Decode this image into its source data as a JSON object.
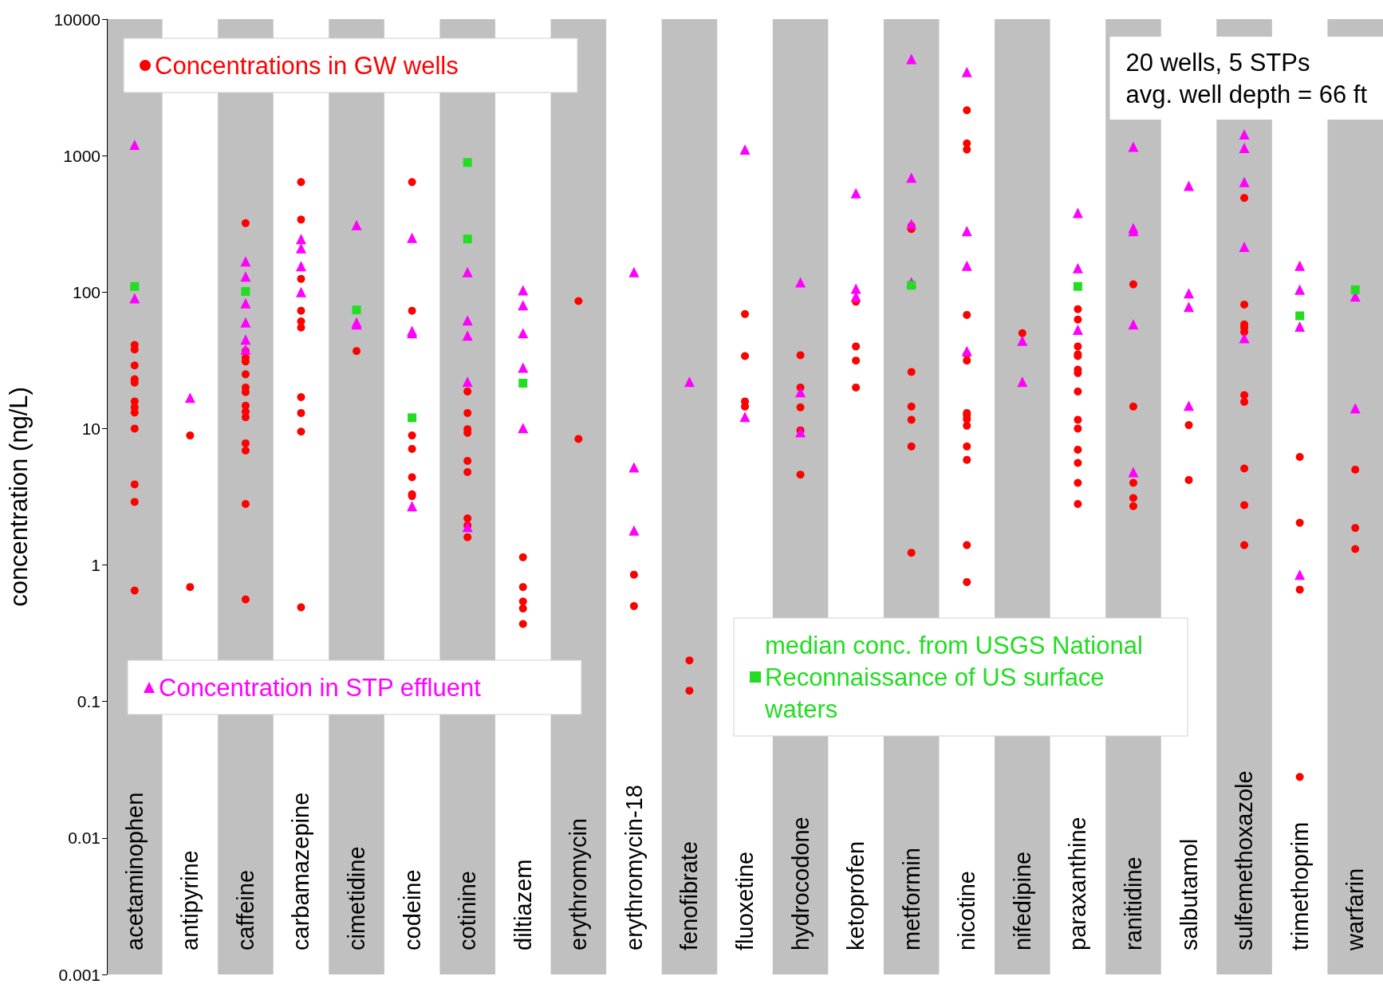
{
  "chart_data": {
    "type": "scatter",
    "ylabel": "concentration (ng/L)",
    "categories": [
      "acetaminophen",
      "antipyrine",
      "caffeine",
      "carbamazepine",
      "cimetidine",
      "codeine",
      "cotinine",
      "diltiazem",
      "erythromycin",
      "erythromycin-18",
      "fenofibrate",
      "fluoxetine",
      "hydrocodone",
      "ketoprofen",
      "metformin",
      "nicotine",
      "nifedipine",
      "paraxanthine",
      "ranitidine",
      "salbutamol",
      "sulfemethoxazole",
      "trimethoprim",
      "warfarin"
    ],
    "log": true,
    "ylim": [
      0.001,
      10000
    ],
    "yticks": [
      0.001,
      0.01,
      0.1,
      1,
      10,
      100,
      1000,
      10000
    ],
    "grid": false,
    "legend": "top left",
    "annotations": [
      "20 wells, 5 STPs\navg. well depth = 66 ft"
    ],
    "bands": [
      {
        "axis": "x",
        "from": "acetaminophen",
        "to": "acetaminophen",
        "color": "#c0c0c0"
      },
      {
        "axis": "x",
        "from": "caffeine",
        "to": "caffeine",
        "color": "#c0c0c0"
      },
      {
        "axis": "x",
        "from": "cimetidine",
        "to": "cimetidine",
        "color": "#c0c0c0"
      },
      {
        "axis": "x",
        "from": "cotinine",
        "to": "cotinine",
        "color": "#c0c0c0"
      },
      {
        "axis": "x",
        "from": "erythromycin",
        "to": "erythromycin",
        "color": "#c0c0c0"
      },
      {
        "axis": "x",
        "from": "fenofibrate",
        "to": "fenofibrate",
        "color": "#c0c0c0"
      },
      {
        "axis": "x",
        "from": "hydrocodone",
        "to": "hydrocodone",
        "color": "#c0c0c0"
      },
      {
        "axis": "x",
        "from": "metformin",
        "to": "metformin",
        "color": "#c0c0c0"
      },
      {
        "axis": "x",
        "from": "nifedipine",
        "to": "nifedipine",
        "color": "#c0c0c0"
      },
      {
        "axis": "x",
        "from": "ranitidine",
        "to": "ranitidine",
        "color": "#c0c0c0"
      },
      {
        "axis": "x",
        "from": "sulfemethoxazole",
        "to": "sulfemethoxazole",
        "color": "#c0c0c0"
      },
      {
        "axis": "x",
        "from": "warfarin",
        "to": "warfarin",
        "color": "#c0c0c0"
      }
    ],
    "series": [
      {
        "name": "Concentrations in GW wells",
        "color": "#ff0000",
        "marker": "circle",
        "x": [
          "acetaminophen",
          "acetaminophen",
          "acetaminophen",
          "acetaminophen",
          "acetaminophen",
          "acetaminophen",
          "acetaminophen",
          "acetaminophen",
          "acetaminophen",
          "acetaminophen",
          "acetaminophen",
          "acetaminophen",
          "antipyrine",
          "antipyrine",
          "caffeine",
          "caffeine",
          "caffeine",
          "caffeine",
          "caffeine",
          "caffeine",
          "caffeine",
          "caffeine",
          "caffeine",
          "caffeine",
          "caffeine",
          "caffeine",
          "caffeine",
          "caffeine",
          "carbamazepine",
          "carbamazepine",
          "carbamazepine",
          "carbamazepine",
          "carbamazepine",
          "carbamazepine",
          "carbamazepine",
          "carbamazepine",
          "carbamazepine",
          "carbamazepine",
          "cimetidine",
          "codeine",
          "codeine",
          "codeine",
          "codeine",
          "codeine",
          "codeine",
          "codeine",
          "cotinine",
          "cotinine",
          "cotinine",
          "cotinine",
          "cotinine",
          "cotinine",
          "cotinine",
          "cotinine",
          "cotinine",
          "diltiazem",
          "diltiazem",
          "diltiazem",
          "diltiazem",
          "diltiazem",
          "erythromycin",
          "erythromycin",
          "erythromycin-18",
          "erythromycin-18",
          "fenofibrate",
          "fenofibrate",
          "fluoxetine",
          "fluoxetine",
          "fluoxetine",
          "fluoxetine",
          "hydrocodone",
          "hydrocodone",
          "hydrocodone",
          "hydrocodone",
          "hydrocodone",
          "ketoprofen",
          "ketoprofen",
          "ketoprofen",
          "ketoprofen",
          "metformin",
          "metformin",
          "metformin",
          "metformin",
          "metformin",
          "metformin",
          "metformin",
          "nicotine",
          "nicotine",
          "nicotine",
          "nicotine",
          "nicotine",
          "nicotine",
          "nicotine",
          "nicotine",
          "nicotine",
          "nicotine",
          "nicotine",
          "nicotine",
          "nicotine",
          "nicotine",
          "nifedipine",
          "paraxanthine",
          "paraxanthine",
          "paraxanthine",
          "paraxanthine",
          "paraxanthine",
          "paraxanthine",
          "paraxanthine",
          "paraxanthine",
          "paraxanthine",
          "paraxanthine",
          "paraxanthine",
          "paraxanthine",
          "paraxanthine",
          "paraxanthine",
          "ranitidine",
          "ranitidine",
          "ranitidine",
          "ranitidine",
          "ranitidine",
          "salbutamol",
          "salbutamol",
          "sulfemethoxazole",
          "sulfemethoxazole",
          "sulfemethoxazole",
          "sulfemethoxazole",
          "sulfemethoxazole",
          "sulfemethoxazole",
          "sulfemethoxazole",
          "sulfemethoxazole",
          "sulfemethoxazole",
          "sulfemethoxazole",
          "trimethoprim",
          "trimethoprim",
          "trimethoprim",
          "trimethoprim",
          "warfarin",
          "warfarin",
          "warfarin"
        ],
        "values": [
          41,
          38,
          29,
          23,
          21.7,
          15.8,
          14.3,
          13.1,
          10,
          3.9,
          2.9,
          0.65,
          8.9,
          0.69,
          320,
          37,
          33,
          31,
          25,
          20,
          18.5,
          14.7,
          13.3,
          12.1,
          7.8,
          6.9,
          2.8,
          0.56,
          640,
          340,
          125,
          73,
          61,
          55,
          17,
          13,
          9.5,
          0.49,
          37,
          640,
          73,
          8.9,
          7.1,
          4.4,
          3.3,
          3.2,
          18.7,
          13,
          9.9,
          9.3,
          5.8,
          4.8,
          2.2,
          1.95,
          1.6,
          1.14,
          0.69,
          0.54,
          0.48,
          0.37,
          86,
          8.4,
          0.85,
          0.5,
          0.2,
          0.12,
          69,
          34,
          15.8,
          14.5,
          34.5,
          20,
          14.3,
          9.7,
          4.6,
          85,
          40,
          31.5,
          20,
          305,
          290,
          26,
          14.5,
          11.6,
          7.4,
          1.23,
          2150,
          1230,
          1110,
          68,
          35,
          31.5,
          13,
          12.5,
          11.7,
          10.5,
          7.4,
          5.9,
          1.4,
          0.75,
          50,
          75,
          63,
          40,
          35,
          34,
          27,
          25.5,
          18.7,
          11.6,
          10,
          7,
          5.6,
          4,
          2.8,
          114,
          14.5,
          4,
          3.1,
          2.7,
          10.6,
          4.2,
          490,
          81,
          58,
          55,
          51,
          17.6,
          15.7,
          5.1,
          2.75,
          1.4,
          6.2,
          2.04,
          0.66,
          0.028,
          5,
          1.87,
          1.31
        ]
      },
      {
        "name": "Concentration in STP effluent",
        "color": "#ff00ff",
        "marker": "triangle",
        "x": [
          "acetaminophen",
          "acetaminophen",
          "antipyrine",
          "caffeine",
          "caffeine",
          "caffeine",
          "caffeine",
          "caffeine",
          "caffeine",
          "carbamazepine",
          "carbamazepine",
          "carbamazepine",
          "carbamazepine",
          "cimetidine",
          "cimetidine",
          "cimetidine",
          "codeine",
          "codeine",
          "codeine",
          "codeine",
          "cotinine",
          "cotinine",
          "cotinine",
          "cotinine",
          "cotinine",
          "diltiazem",
          "diltiazem",
          "diltiazem",
          "diltiazem",
          "diltiazem",
          "erythromycin-18",
          "erythromycin-18",
          "erythromycin-18",
          "fenofibrate",
          "fluoxetine",
          "fluoxetine",
          "hydrocodone",
          "hydrocodone",
          "hydrocodone",
          "ketoprofen",
          "ketoprofen",
          "ketoprofen",
          "metformin",
          "metformin",
          "metformin",
          "metformin",
          "nicotine",
          "nicotine",
          "nicotine",
          "nicotine",
          "nifedipine",
          "nifedipine",
          "paraxanthine",
          "paraxanthine",
          "paraxanthine",
          "ranitidine",
          "ranitidine",
          "ranitidine",
          "ranitidine",
          "ranitidine",
          "salbutamol",
          "salbutamol",
          "salbutamol",
          "salbutamol",
          "sulfemethoxazole",
          "sulfemethoxazole",
          "sulfemethoxazole",
          "sulfemethoxazole",
          "sulfemethoxazole",
          "trimethoprim",
          "trimethoprim",
          "trimethoprim",
          "trimethoprim",
          "warfarin",
          "warfarin"
        ],
        "values": [
          1200,
          90,
          16.8,
          168,
          130,
          83,
          60,
          45,
          38,
          245,
          210,
          155,
          100,
          310,
          60,
          58,
          250,
          52,
          50,
          2.7,
          140,
          62,
          48,
          22,
          1.9,
          103,
          80,
          50,
          28,
          10.1,
          140,
          5.2,
          1.79,
          22,
          1110,
          12.2,
          118,
          18.5,
          9.4,
          530,
          106,
          93,
          5100,
          690,
          315,
          118,
          4100,
          280,
          156,
          37,
          44,
          22,
          380,
          150,
          53,
          1160,
          295,
          280,
          58,
          4.8,
          600,
          98,
          78,
          14.7,
          1430,
          1140,
          640,
          215,
          46,
          156,
          104,
          56,
          0.85,
          93,
          14.1
        ]
      },
      {
        "name": "median conc. from USGS National Reconnaissance of US surface waters",
        "color": "#22dd22",
        "marker": "square",
        "x": [
          "acetaminophen",
          "caffeine",
          "cimetidine",
          "codeine",
          "cotinine",
          "cotinine",
          "diltiazem",
          "metformin",
          "paraxanthine",
          "trimethoprim",
          "warfarin"
        ],
        "values": [
          110,
          101,
          74,
          12,
          890,
          245,
          21.5,
          112,
          110,
          67,
          104
        ]
      }
    ]
  }
}
